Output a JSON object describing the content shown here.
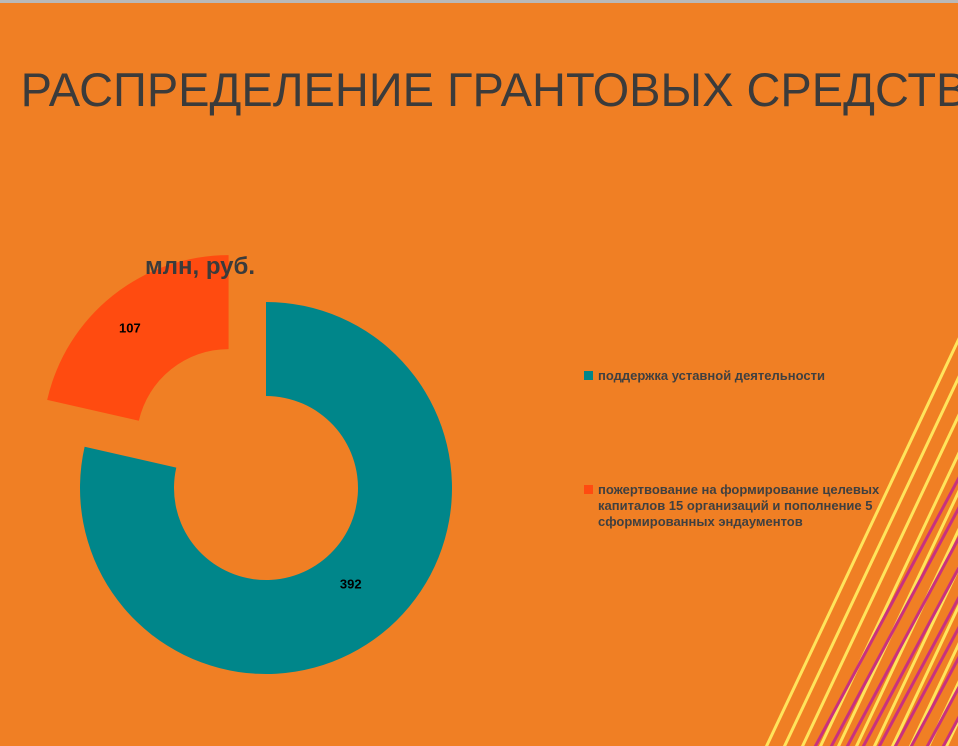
{
  "slide": {
    "title": "РАСПРЕДЕЛЕНИЕ ГРАНТОВЫХ СРЕДСТВ",
    "background_color": "#f07f24"
  },
  "chart_data": {
    "type": "pie",
    "subtype": "exploded-doughnut",
    "title": "млн, руб.",
    "series": [
      {
        "name": "поддержка уставной деятельности",
        "value": 392,
        "color": "#00868a"
      },
      {
        "name": "пожертвование на формирование целевых капиталов 15 организаций и пополнение 5 сформированных эндаументов",
        "value": 107,
        "color": "#ff4b10"
      }
    ],
    "legend_position": "right"
  },
  "decoration": {
    "stripe_colors": [
      "#ffe45c",
      "#c9317e"
    ]
  }
}
